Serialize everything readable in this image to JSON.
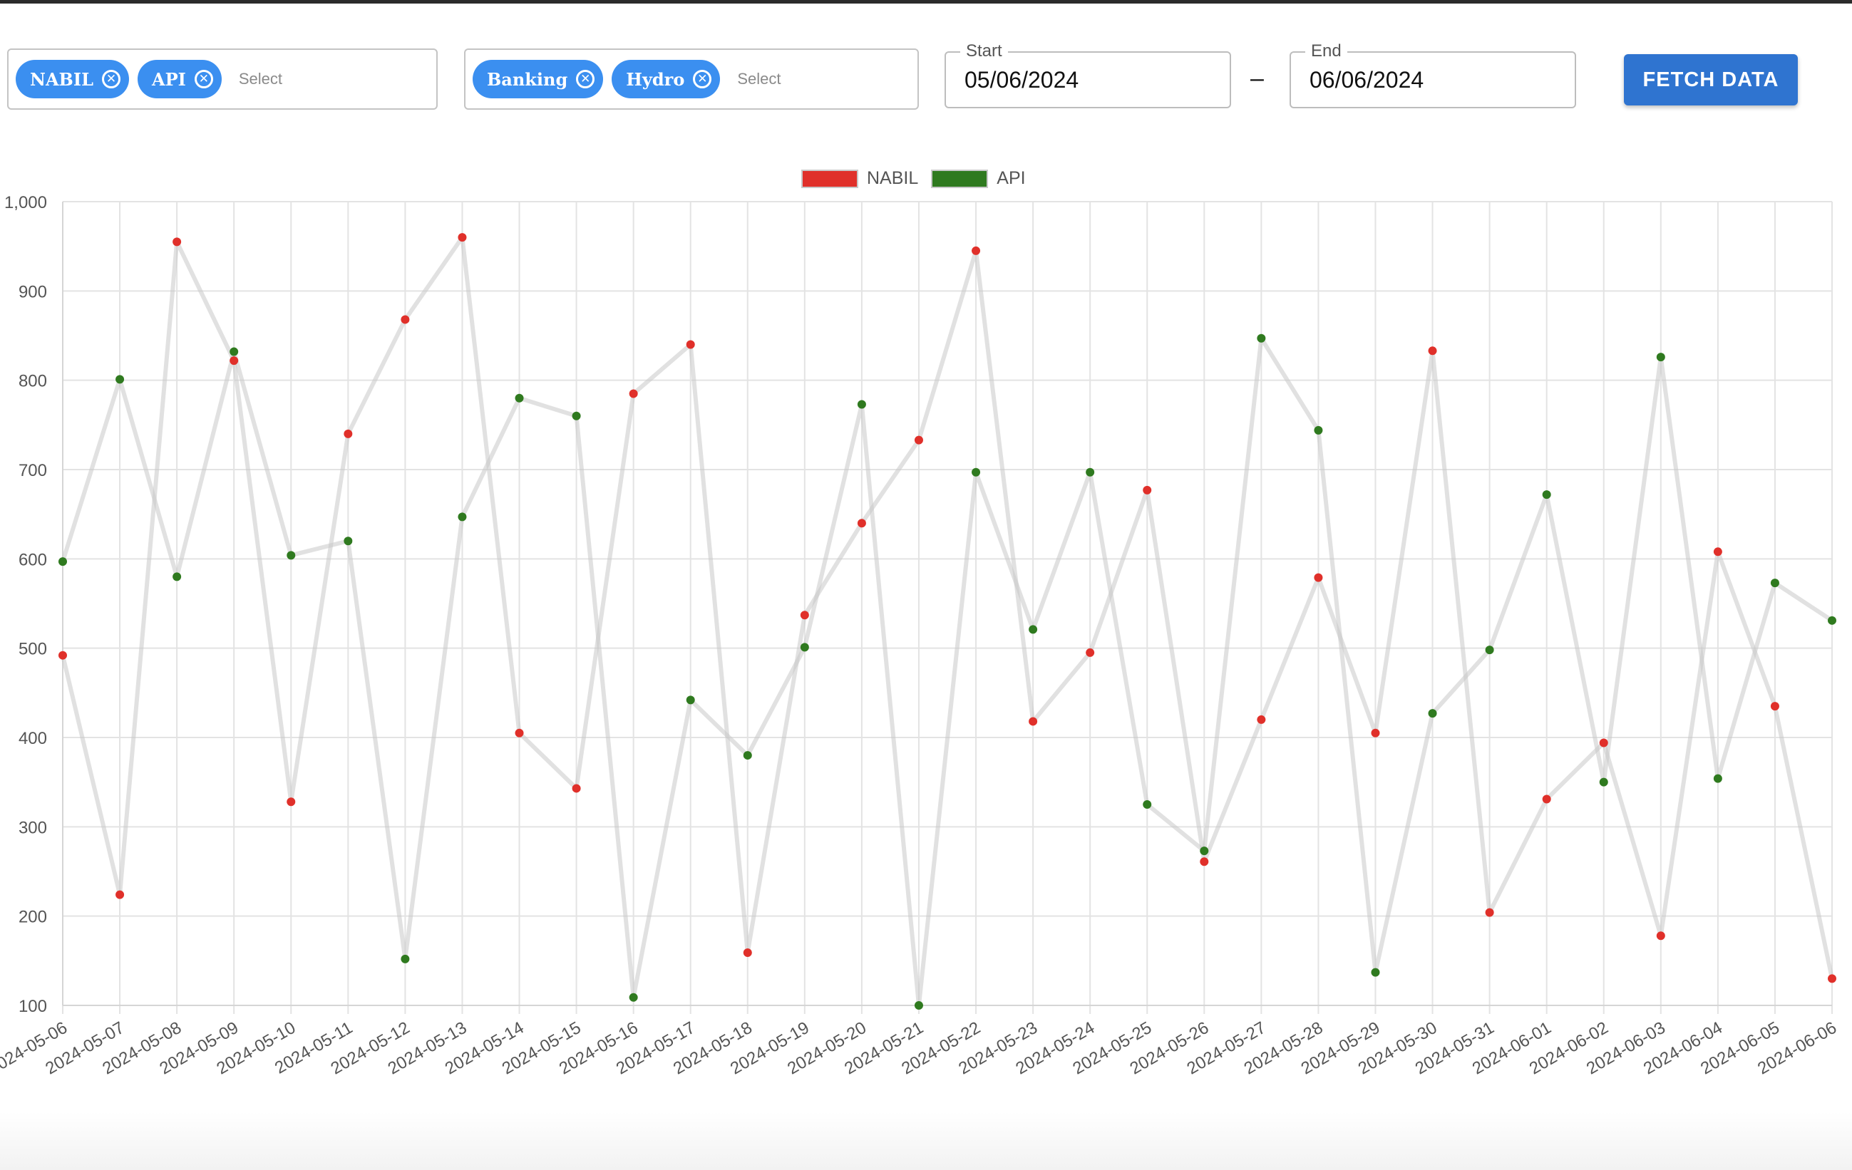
{
  "filters": {
    "stocks": {
      "chips": [
        "NABIL",
        "API"
      ],
      "placeholder": "Select"
    },
    "sectors": {
      "chips": [
        "Banking",
        "Hydro"
      ],
      "placeholder": "Select"
    }
  },
  "date_range": {
    "start_label": "Start",
    "start_value": "05/06/2024",
    "separator": "–",
    "end_label": "End",
    "end_value": "06/06/2024"
  },
  "fetch_button": {
    "label": "FETCH DATA"
  },
  "icons": {
    "chip_remove": "close-circle-icon"
  },
  "colors": {
    "accent": "#3b8ff0",
    "button": "#2f74d0",
    "nabil": "#e0302a",
    "api": "#2f7a1f"
  },
  "chart_data": {
    "type": "line",
    "title": "",
    "xlabel": "",
    "ylabel": "",
    "ylim": [
      100,
      1000
    ],
    "yticks": [
      "1,000",
      "900",
      "800",
      "700",
      "600",
      "500",
      "400",
      "300",
      "200",
      "100"
    ],
    "legend_position": "top",
    "grid": true,
    "categories": [
      "2024-05-06",
      "2024-05-07",
      "2024-05-08",
      "2024-05-09",
      "2024-05-10",
      "2024-05-11",
      "2024-05-12",
      "2024-05-13",
      "2024-05-14",
      "2024-05-15",
      "2024-05-16",
      "2024-05-17",
      "2024-05-18",
      "2024-05-19",
      "2024-05-20",
      "2024-05-21",
      "2024-05-22",
      "2024-05-23",
      "2024-05-24",
      "2024-05-25",
      "2024-05-26",
      "2024-05-27",
      "2024-05-28",
      "2024-05-29",
      "2024-05-30",
      "2024-05-31",
      "2024-06-01",
      "2024-06-02",
      "2024-06-03",
      "2024-06-04",
      "2024-06-05",
      "2024-06-06"
    ],
    "series": [
      {
        "name": "NABIL",
        "color": "#e0302a",
        "values": [
          492,
          224,
          955,
          822,
          328,
          740,
          868,
          960,
          405,
          343,
          785,
          840,
          159,
          537,
          640,
          733,
          945,
          418,
          495,
          677,
          261,
          420,
          579,
          405,
          833,
          204,
          331,
          394,
          178,
          608,
          435,
          130
        ]
      },
      {
        "name": "API",
        "color": "#2f7a1f",
        "values": [
          597,
          801,
          580,
          832,
          604,
          620,
          152,
          647,
          780,
          760,
          109,
          442,
          380,
          501,
          773,
          100,
          697,
          521,
          697,
          325,
          273,
          847,
          744,
          137,
          427,
          498,
          672,
          350,
          826,
          354,
          573,
          531
        ]
      }
    ]
  }
}
